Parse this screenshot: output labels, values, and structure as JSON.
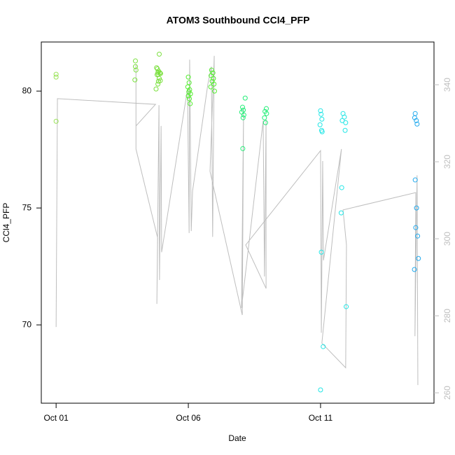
{
  "chart_data": {
    "type": "scatter",
    "title": "ATOM3 Southbound CCl4_PFP",
    "xlabel": "Date",
    "ylabel": "CCl4_PFP",
    "xlim": [
      0.44,
      15.29
    ],
    "xticks": [
      {
        "value": 1,
        "label": "Oct 01"
      },
      {
        "value": 6,
        "label": "Oct 06"
      },
      {
        "value": 11,
        "label": "Oct 11"
      }
    ],
    "ylim": [
      66.65,
      82.1
    ],
    "yticks": [
      70,
      75,
      80
    ],
    "y2lim": [
      257.3,
      351.1
    ],
    "y2ticks": [
      260,
      280,
      300,
      320,
      340
    ],
    "series": [
      {
        "type": "line",
        "axis": "y2",
        "color": "#bebebe",
        "x": [
          1.0,
          1.05,
          4.76,
          4.02,
          4.02,
          4.02,
          4.84,
          4.81,
          4.89,
          4.91,
          4.97,
          4.99,
          5.97,
          6.03,
          6.05,
          6.11,
          6.16,
          6.74,
          6.87,
          6.92,
          6.98,
          6.82,
          8.04,
          8.09,
          8.01,
          8.83,
          8.88,
          8.94,
          8.94,
          8.17,
          11.0,
          11.03,
          11.08,
          11.11,
          11.79,
          11.05,
          11.95,
          11.98,
          11.85,
          14.6,
          14.57,
          14.65,
          14.68
        ],
        "values": [
          277.1,
          336.4,
          334.9,
          329.3,
          345.3,
          323.3,
          300.2,
          283.1,
          334.7,
          289.3,
          329.3,
          296.5,
          338.9,
          301.5,
          346.5,
          302.0,
          312.4,
          340.2,
          344.7,
          300.5,
          347.5,
          317.5,
          280.2,
          333.8,
          282.0,
          330.7,
          290.2,
          331.1,
          287.1,
          298.4,
          322.9,
          275.6,
          320.2,
          294.4,
          323.3,
          272.9,
          266.5,
          298.4,
          307.5,
          312.0,
          274.7,
          316.5,
          262.0
        ]
      },
      {
        "type": "scatter",
        "color": "#9be35a",
        "x": [
          1.0,
          1.0,
          1.0
        ],
        "values": [
          80.72,
          80.6,
          78.71
        ]
      },
      {
        "type": "scatter",
        "color": "#7ce040",
        "x": [
          4.0,
          4.0,
          4.02,
          3.98,
          4.8,
          4.85,
          4.9,
          4.83,
          4.88,
          4.93,
          4.86,
          4.92,
          4.95,
          4.82,
          4.9,
          4.87,
          4.94,
          4.85,
          4.78
        ],
        "values": [
          81.29,
          81.05,
          80.9,
          80.48,
          81.0,
          80.8,
          81.58,
          80.95,
          80.85,
          80.78,
          80.72,
          80.78,
          80.75,
          80.7,
          80.54,
          80.42,
          80.45,
          80.3,
          80.09
        ]
      },
      {
        "type": "scatter",
        "color": "#55ee30",
        "x": [
          6.0,
          6.03,
          5.98,
          6.05,
          6.02,
          6.08,
          6.0,
          6.04,
          6.07,
          6.88,
          6.93,
          6.86,
          6.95,
          6.9,
          6.97,
          6.85,
          6.99
        ],
        "values": [
          80.6,
          80.36,
          80.18,
          80.06,
          79.97,
          79.88,
          79.79,
          79.67,
          79.46,
          80.9,
          80.78,
          80.66,
          80.54,
          80.42,
          80.3,
          80.18,
          80.0
        ]
      },
      {
        "type": "scatter",
        "color": "#22ee77",
        "x": [
          8.15,
          8.05,
          8.08,
          8.02,
          8.1,
          8.07,
          8.06,
          8.95,
          8.9,
          8.96,
          8.88,
          8.92
        ],
        "values": [
          79.7,
          79.31,
          79.19,
          79.1,
          78.98,
          78.86,
          77.54,
          79.25,
          79.13,
          79.04,
          78.86,
          78.65
        ]
      },
      {
        "type": "scatter",
        "color": "#22e6e6",
        "x": [
          11.0,
          11.02,
          11.05,
          10.98,
          11.04,
          11.06,
          11.03,
          11.1,
          11.0,
          11.85,
          11.9,
          11.82,
          11.95,
          11.93,
          11.8,
          11.78,
          11.97
        ],
        "values": [
          79.16,
          79.01,
          78.8,
          78.56,
          78.32,
          78.26,
          73.11,
          69.07,
          67.22,
          79.04,
          78.89,
          78.74,
          78.65,
          78.32,
          75.87,
          74.79,
          70.78
        ]
      },
      {
        "type": "scatter",
        "color": "#22aaee",
        "x": [
          14.58,
          14.56,
          14.62,
          14.65,
          14.58,
          14.63,
          14.6,
          14.67,
          14.7,
          14.55
        ],
        "values": [
          79.04,
          78.86,
          78.74,
          78.59,
          76.2,
          75.0,
          74.16,
          73.8,
          72.84,
          72.37
        ]
      }
    ]
  }
}
